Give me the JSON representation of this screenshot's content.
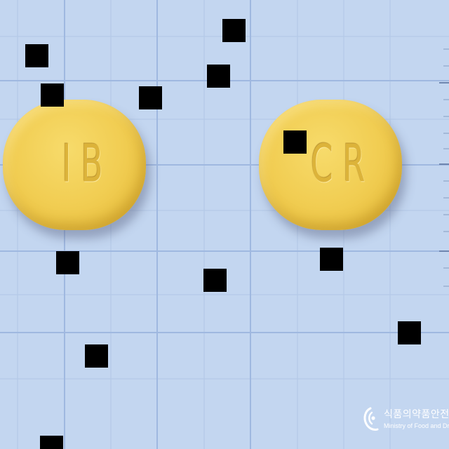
{
  "photo": {
    "background_color": "#c3d6f0",
    "pill_color": "#f1cd52"
  },
  "tablets": [
    {
      "imprint": "IB"
    },
    {
      "imprint": "CR"
    }
  ],
  "logo": {
    "korean": "식품의약품안전처",
    "english": "Ministry of Food and Drug Safety"
  }
}
